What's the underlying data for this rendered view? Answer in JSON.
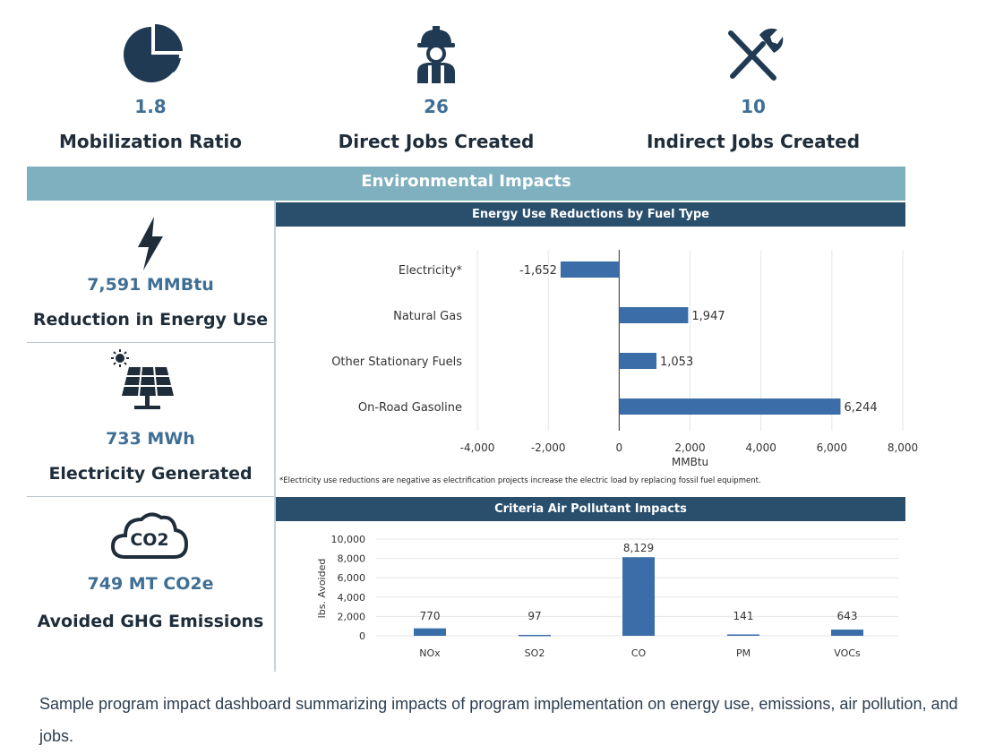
{
  "stats": [
    {
      "value": "1.8",
      "label": "Mobilization Ratio",
      "icon": "pie-chart-icon"
    },
    {
      "value": "26",
      "label": "Direct Jobs Created",
      "icon": "worker-icon"
    },
    {
      "value": "10",
      "label": "Indirect Jobs Created",
      "icon": "tools-icon"
    }
  ],
  "band_title": "Environmental Impacts",
  "impacts": [
    {
      "value": "7,591 MMBtu",
      "label": "Reduction in Energy Use",
      "icon": "lightning-icon"
    },
    {
      "value": "733 MWh",
      "label": "Electricity Generated",
      "icon": "solar-panel-icon"
    },
    {
      "value": "749 MT CO2e",
      "label": "Avoided GHG Emissions",
      "icon": "co2-cloud-icon",
      "icon_text": "CO2"
    }
  ],
  "colors": {
    "bar": "#3b6ea8",
    "panel_header": "#2a4f6d",
    "band": "#7fb0bf",
    "value": "#3f6f95"
  },
  "chart_data": [
    {
      "type": "bar",
      "orientation": "horizontal",
      "title": "Energy Use Reductions by Fuel Type",
      "categories": [
        "Electricity*",
        "Natural Gas",
        "Other Stationary Fuels",
        "On-Road Gasoline"
      ],
      "values": [
        -1652,
        1947,
        1053,
        6244
      ],
      "value_labels": [
        "-1,652",
        "1,947",
        "1,053",
        "6,244"
      ],
      "xlabel": "MMBtu",
      "xlim": [
        -4000,
        8000
      ],
      "xticks": [
        -4000,
        -2000,
        0,
        2000,
        4000,
        6000,
        8000
      ],
      "xtick_labels": [
        "-4,000",
        "-2,000",
        "0",
        "2,000",
        "4,000",
        "6,000",
        "8,000"
      ],
      "grid": true,
      "footnote": "*Electricity use reductions are negative as electrification projects increase the electric load by replacing fossil fuel equipment."
    },
    {
      "type": "bar",
      "title": "Criteria Air Pollutant Impacts",
      "categories": [
        "NOx",
        "SO2",
        "CO",
        "PM",
        "VOCs"
      ],
      "values": [
        770,
        97,
        8129,
        141,
        643
      ],
      "value_labels": [
        "770",
        "97",
        "8,129",
        "141",
        "643"
      ],
      "ylabel": "lbs. Avoided",
      "ylim": [
        0,
        10000
      ],
      "yticks": [
        0,
        2000,
        4000,
        6000,
        8000,
        10000
      ],
      "ytick_labels": [
        "0",
        "2,000",
        "4,000",
        "6,000",
        "8,000",
        "10,000"
      ],
      "grid": true
    }
  ],
  "caption": "Sample program impact dashboard summarizing impacts of program implementation on energy use, emissions, air pollution, and jobs."
}
